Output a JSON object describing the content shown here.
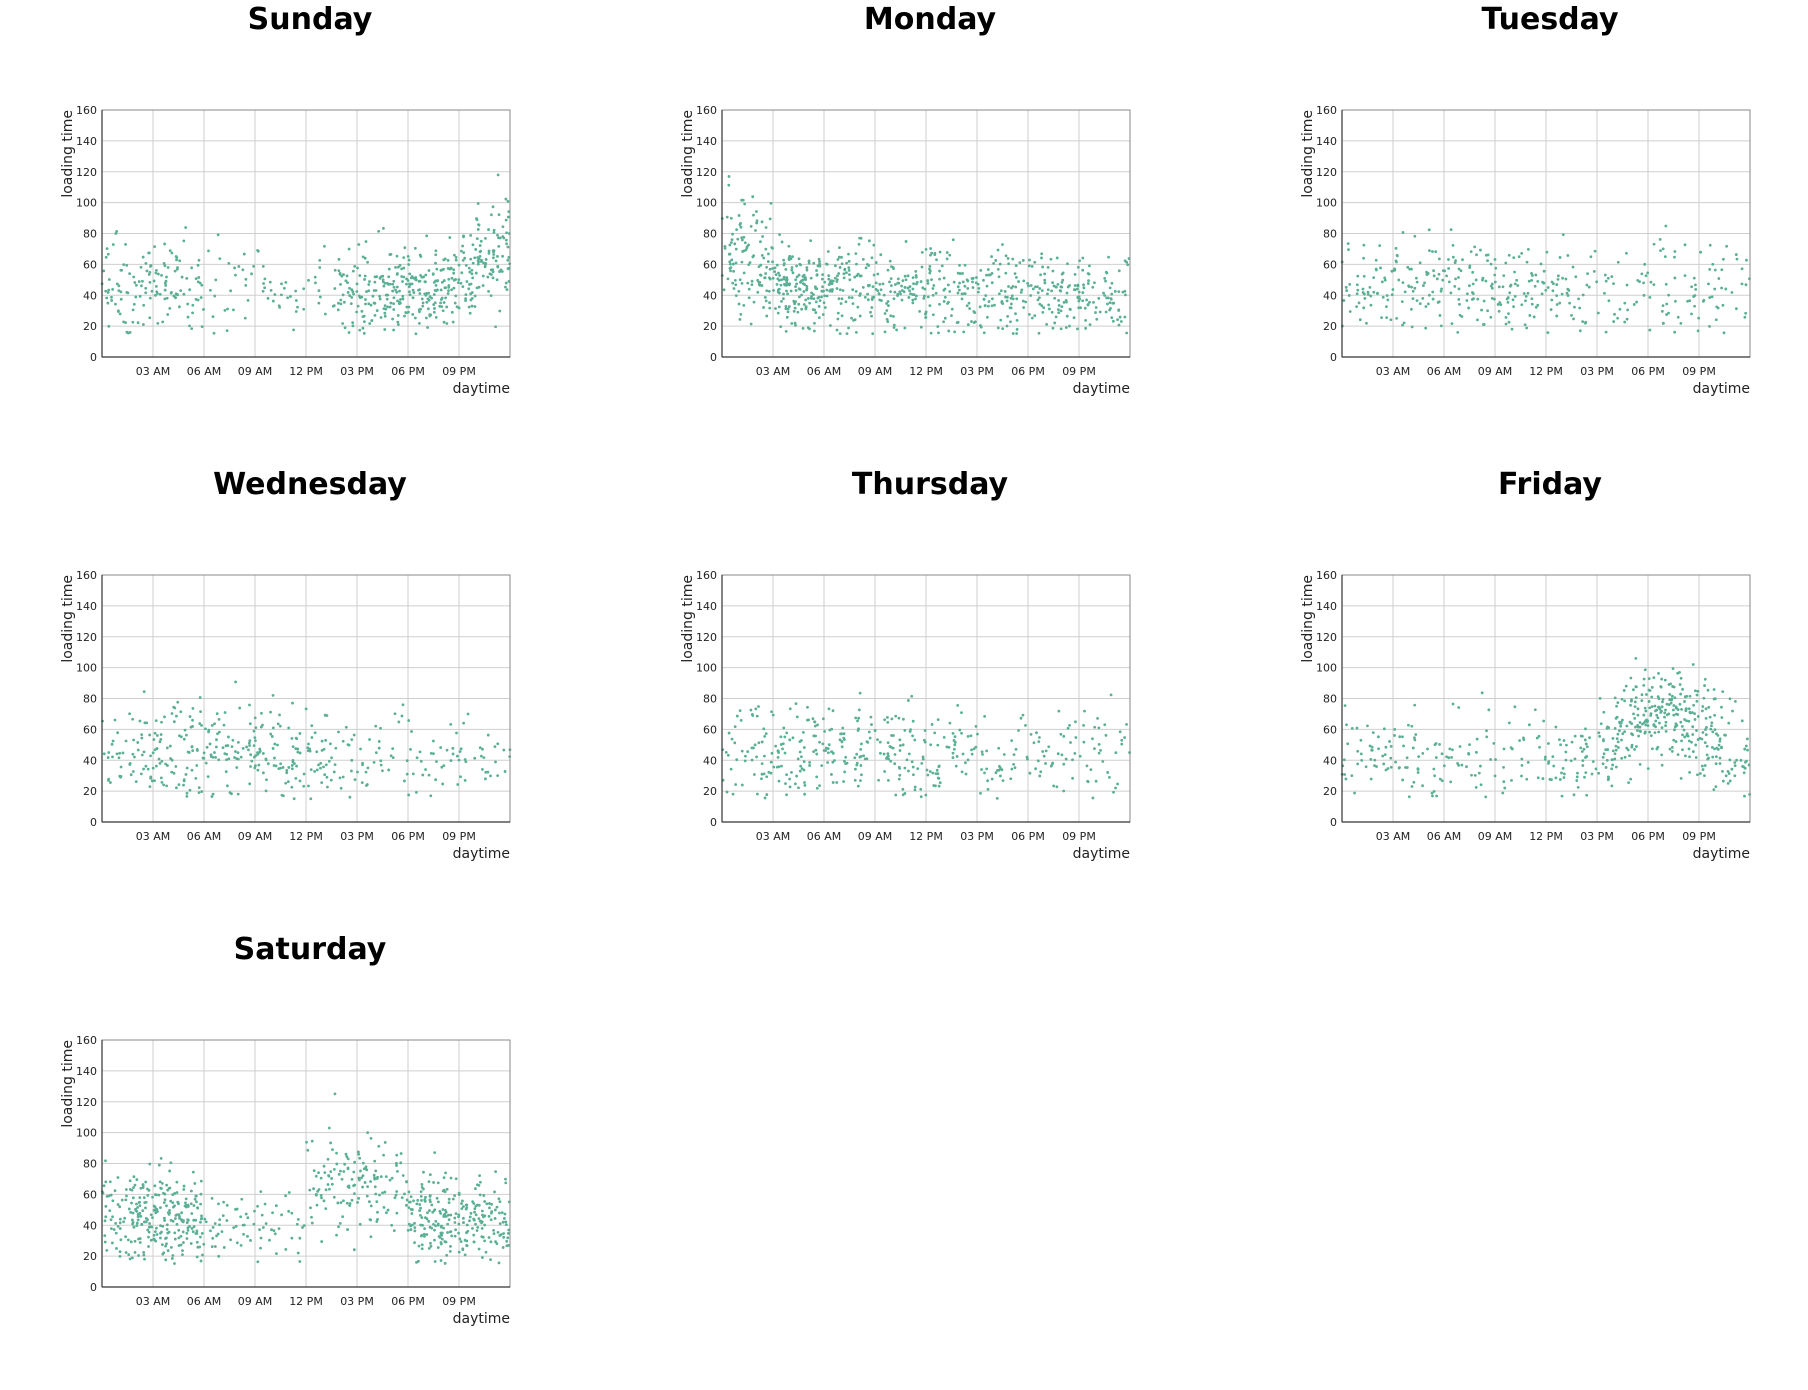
{
  "chart_data": [
    {
      "type": "scatter",
      "title": "Sunday",
      "xlabel": "daytime",
      "ylabel": "loading time",
      "ylim": [
        0,
        160
      ],
      "xlim_hours": [
        0,
        24
      ],
      "grid": true,
      "color": "#5aaf95",
      "x_ticks": [
        "03 AM",
        "06 AM",
        "09 AM",
        "12 PM",
        "03 PM",
        "06 PM",
        "09 PM"
      ],
      "y_ticks": [
        "0",
        "20",
        "40",
        "60",
        "80",
        "100",
        "120",
        "140",
        "160"
      ],
      "density_by_hour": [
        24,
        22,
        24,
        26,
        24,
        20,
        8,
        8,
        9,
        10,
        9,
        8,
        8,
        10,
        30,
        35,
        40,
        42,
        45,
        45,
        42,
        40,
        42,
        48
      ],
      "mean_by_hour": [
        48,
        45,
        45,
        45,
        45,
        44,
        45,
        45,
        44,
        45,
        43,
        44,
        44,
        43,
        42,
        40,
        42,
        42,
        42,
        43,
        44,
        52,
        60,
        68
      ],
      "spread_by_hour": [
        15,
        15,
        15,
        15,
        15,
        15,
        15,
        15,
        15,
        15,
        15,
        15,
        15,
        15,
        14,
        14,
        14,
        14,
        14,
        14,
        14,
        16,
        18,
        20
      ]
    },
    {
      "type": "scatter",
      "title": "Monday",
      "xlabel": "daytime",
      "ylabel": "loading time",
      "ylim": [
        0,
        160
      ],
      "xlim_hours": [
        0,
        24
      ],
      "grid": true,
      "color": "#5aaf95",
      "x_ticks": [
        "03 AM",
        "06 AM",
        "09 AM",
        "12 PM",
        "03 PM",
        "06 PM",
        "09 PM"
      ],
      "y_ticks": [
        "0",
        "20",
        "40",
        "60",
        "80",
        "100",
        "120",
        "140",
        "160"
      ],
      "density_by_hour": [
        35,
        40,
        45,
        55,
        55,
        45,
        40,
        35,
        32,
        30,
        30,
        30,
        30,
        28,
        28,
        28,
        28,
        28,
        30,
        32,
        30,
        28,
        25,
        20
      ],
      "mean_by_hour": [
        70,
        68,
        58,
        48,
        45,
        45,
        45,
        44,
        44,
        44,
        43,
        43,
        43,
        42,
        42,
        42,
        42,
        42,
        42,
        42,
        42,
        42,
        42,
        42
      ],
      "spread_by_hour": [
        20,
        18,
        16,
        14,
        14,
        14,
        14,
        14,
        14,
        14,
        14,
        14,
        14,
        14,
        14,
        14,
        14,
        14,
        14,
        14,
        14,
        14,
        14,
        14
      ]
    },
    {
      "type": "scatter",
      "title": "Tuesday",
      "xlabel": "daytime",
      "ylabel": "loading time",
      "ylim": [
        0,
        160
      ],
      "xlim_hours": [
        0,
        24
      ],
      "grid": true,
      "color": "#5aaf95",
      "x_ticks": [
        "03 AM",
        "06 AM",
        "09 AM",
        "12 PM",
        "03 PM",
        "06 PM",
        "09 PM"
      ],
      "y_ticks": [
        "0",
        "20",
        "40",
        "60",
        "80",
        "100",
        "120",
        "140",
        "160"
      ],
      "density_by_hour": [
        15,
        18,
        20,
        20,
        20,
        22,
        22,
        20,
        20,
        22,
        20,
        20,
        18,
        15,
        12,
        10,
        10,
        10,
        12,
        14,
        14,
        12,
        12,
        10
      ],
      "mean_by_hour": [
        45,
        45,
        46,
        47,
        46,
        46,
        46,
        46,
        46,
        45,
        45,
        44,
        44,
        43,
        42,
        42,
        42,
        42,
        44,
        44,
        45,
        45,
        46,
        46
      ],
      "spread_by_hour": [
        15,
        15,
        15,
        15,
        15,
        15,
        15,
        15,
        15,
        15,
        15,
        15,
        15,
        15,
        15,
        15,
        15,
        15,
        15,
        15,
        15,
        15,
        15,
        15
      ]
    },
    {
      "type": "scatter",
      "title": "Wednesday",
      "xlabel": "daytime",
      "ylabel": "loading time",
      "ylim": [
        0,
        160
      ],
      "xlim_hours": [
        0,
        24
      ],
      "grid": true,
      "color": "#5aaf95",
      "x_ticks": [
        "03 AM",
        "06 AM",
        "09 AM",
        "12 PM",
        "03 PM",
        "06 PM",
        "09 PM"
      ],
      "y_ticks": [
        "0",
        "20",
        "40",
        "60",
        "80",
        "100",
        "120",
        "140",
        "160"
      ],
      "density_by_hour": [
        14,
        16,
        22,
        26,
        26,
        26,
        24,
        22,
        22,
        24,
        24,
        22,
        22,
        18,
        12,
        10,
        10,
        10,
        10,
        10,
        10,
        10,
        10,
        8
      ],
      "mean_by_hour": [
        44,
        44,
        46,
        46,
        46,
        45,
        45,
        44,
        44,
        44,
        44,
        44,
        44,
        43,
        42,
        42,
        42,
        42,
        42,
        42,
        42,
        42,
        42,
        42
      ],
      "spread_by_hour": [
        15,
        15,
        15,
        15,
        15,
        15,
        15,
        15,
        15,
        15,
        15,
        15,
        15,
        15,
        15,
        15,
        15,
        15,
        15,
        15,
        15,
        15,
        15,
        15
      ]
    },
    {
      "type": "scatter",
      "title": "Thursday",
      "xlabel": "daytime",
      "ylabel": "loading time",
      "ylim": [
        0,
        160
      ],
      "xlim_hours": [
        0,
        24
      ],
      "grid": true,
      "color": "#5aaf95",
      "x_ticks": [
        "03 AM",
        "06 AM",
        "09 AM",
        "12 PM",
        "03 PM",
        "06 PM",
        "09 PM"
      ],
      "y_ticks": [
        "0",
        "20",
        "40",
        "60",
        "80",
        "100",
        "120",
        "140",
        "160"
      ],
      "density_by_hour": [
        14,
        16,
        22,
        24,
        24,
        22,
        22,
        22,
        22,
        22,
        24,
        22,
        20,
        16,
        14,
        12,
        12,
        12,
        12,
        12,
        12,
        12,
        12,
        10
      ],
      "mean_by_hour": [
        46,
        46,
        47,
        47,
        46,
        46,
        46,
        46,
        46,
        46,
        45,
        45,
        44,
        44,
        43,
        43,
        43,
        43,
        43,
        43,
        44,
        44,
        44,
        44
      ],
      "spread_by_hour": [
        15,
        15,
        15,
        15,
        15,
        15,
        15,
        15,
        15,
        15,
        15,
        15,
        15,
        15,
        15,
        15,
        15,
        15,
        15,
        15,
        15,
        15,
        15,
        15
      ]
    },
    {
      "type": "scatter",
      "title": "Friday",
      "xlabel": "daytime",
      "ylabel": "loading time",
      "ylim": [
        0,
        160
      ],
      "xlim_hours": [
        0,
        24
      ],
      "grid": true,
      "color": "#5aaf95",
      "x_ticks": [
        "03 AM",
        "06 AM",
        "09 AM",
        "12 PM",
        "03 PM",
        "06 PM",
        "09 PM"
      ],
      "y_ticks": [
        "0",
        "20",
        "40",
        "60",
        "80",
        "100",
        "120",
        "140",
        "160"
      ],
      "density_by_hour": [
        14,
        14,
        14,
        14,
        14,
        14,
        12,
        10,
        10,
        10,
        10,
        10,
        14,
        16,
        20,
        28,
        40,
        48,
        50,
        50,
        46,
        40,
        30,
        20
      ],
      "mean_by_hour": [
        46,
        46,
        45,
        45,
        45,
        44,
        44,
        44,
        44,
        43,
        43,
        43,
        43,
        42,
        44,
        50,
        60,
        68,
        70,
        68,
        64,
        58,
        48,
        42
      ],
      "spread_by_hour": [
        15,
        15,
        15,
        15,
        15,
        15,
        15,
        15,
        15,
        15,
        15,
        15,
        15,
        15,
        15,
        16,
        16,
        16,
        16,
        16,
        16,
        16,
        15,
        15
      ]
    },
    {
      "type": "scatter",
      "title": "Saturday",
      "xlabel": "daytime",
      "ylabel": "loading time",
      "ylim": [
        0,
        160
      ],
      "xlim_hours": [
        0,
        24
      ],
      "grid": true,
      "color": "#5aaf95",
      "x_ticks": [
        "03 AM",
        "06 AM",
        "09 AM",
        "12 PM",
        "03 PM",
        "06 PM",
        "09 PM"
      ],
      "y_ticks": [
        "0",
        "20",
        "40",
        "60",
        "80",
        "100",
        "120",
        "140",
        "160"
      ],
      "density_by_hour": [
        30,
        40,
        55,
        60,
        50,
        45,
        15,
        12,
        12,
        12,
        10,
        10,
        20,
        25,
        28,
        28,
        25,
        20,
        45,
        50,
        45,
        42,
        40,
        35
      ],
      "mean_by_hour": [
        45,
        46,
        48,
        48,
        46,
        44,
        42,
        40,
        40,
        40,
        40,
        40,
        62,
        70,
        72,
        70,
        68,
        62,
        44,
        43,
        43,
        43,
        43,
        43
      ],
      "spread_by_hour": [
        15,
        15,
        15,
        15,
        15,
        15,
        14,
        14,
        14,
        14,
        14,
        14,
        16,
        18,
        18,
        18,
        18,
        16,
        14,
        14,
        14,
        14,
        14,
        14
      ]
    }
  ]
}
